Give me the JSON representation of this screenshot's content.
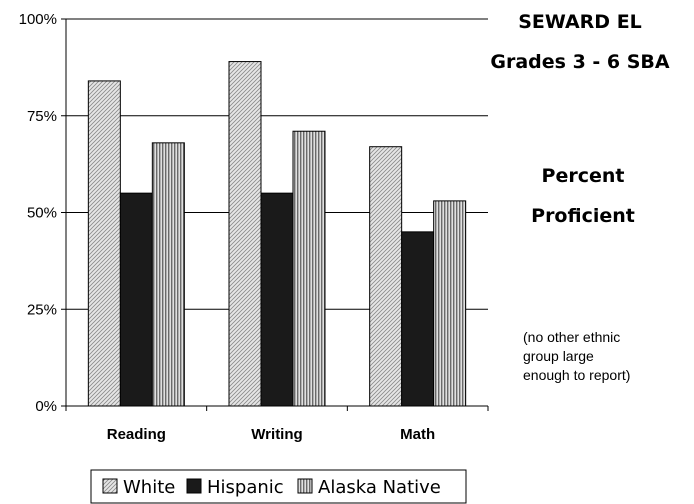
{
  "chart_data": {
    "type": "bar",
    "categories": [
      "Reading",
      "Writing",
      "Math"
    ],
    "series": [
      {
        "name": "White",
        "values": [
          84,
          89,
          67
        ],
        "color": "#d4d4d4",
        "pattern": "diagonal"
      },
      {
        "name": "Hispanic",
        "values": [
          55,
          55,
          45
        ],
        "color": "#1a1a1a",
        "pattern": "solid"
      },
      {
        "name": "Alaska Native",
        "values": [
          68,
          71,
          53
        ],
        "color": "#b8b8b8",
        "pattern": "vertical"
      }
    ],
    "ylim": [
      0,
      100
    ],
    "yticks": [
      "0%",
      "25%",
      "50%",
      "75%",
      "100%"
    ],
    "grid": true,
    "legend_position": "bottom",
    "title_lines": [
      "SEWARD EL",
      "Grades 3 - 6  SBA"
    ],
    "subtitle_lines": [
      "Percent",
      "Proficient"
    ],
    "note_lines": [
      "(no other ethnic",
      "group large",
      "enough to report)"
    ]
  }
}
